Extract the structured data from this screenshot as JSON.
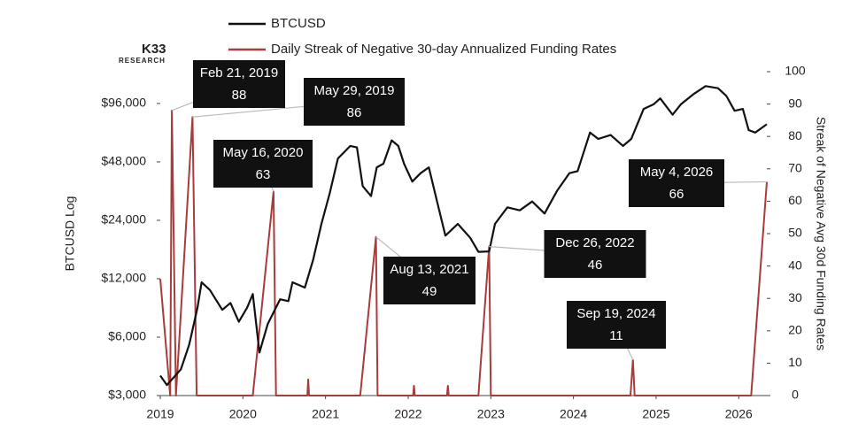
{
  "chart_data": {
    "type": "line",
    "logo": "K33",
    "logo_sub": "RESEARCH",
    "y_label": "BTCUSD Log",
    "y2_label": "Streak of Negative Avg 30d  Funding Rates",
    "xlim": [
      2019,
      2026.34
    ],
    "xticks": [
      2019,
      2020,
      2021,
      2022,
      2023,
      2024,
      2025,
      2026
    ],
    "ylim": [
      3000,
      140000
    ],
    "log_y": true,
    "yticks": [
      {
        "value": 3000,
        "label": "$3,000"
      },
      {
        "value": 6000,
        "label": "$6,000"
      },
      {
        "value": 12000,
        "label": "$12,000"
      },
      {
        "value": 24000,
        "label": "$24,000"
      },
      {
        "value": 48000,
        "label": "$48,000"
      },
      {
        "value": 96000,
        "label": "$96,000"
      }
    ],
    "y2lim": [
      0,
      100
    ],
    "y2ticks": [
      0,
      10,
      20,
      30,
      40,
      50,
      60,
      70,
      80,
      90,
      100
    ],
    "series": [
      {
        "name": "BTCUSD",
        "color": "#111111",
        "x": [
          2019.0,
          2019.08,
          2019.25,
          2019.35,
          2019.45,
          2019.5,
          2019.6,
          2019.75,
          2019.85,
          2019.95,
          2020.05,
          2020.12,
          2020.2,
          2020.3,
          2020.45,
          2020.55,
          2020.6,
          2020.75,
          2020.85,
          2020.95,
          2021.05,
          2021.15,
          2021.3,
          2021.38,
          2021.45,
          2021.55,
          2021.62,
          2021.7,
          2021.8,
          2021.88,
          2021.95,
          2022.05,
          2022.15,
          2022.25,
          2022.35,
          2022.45,
          2022.6,
          2022.75,
          2022.85,
          2022.98,
          2023.05,
          2023.2,
          2023.35,
          2023.5,
          2023.65,
          2023.8,
          2023.95,
          2024.05,
          2024.2,
          2024.3,
          2024.45,
          2024.6,
          2024.7,
          2024.85,
          2024.97,
          2025.05,
          2025.2,
          2025.3,
          2025.45,
          2025.6,
          2025.75,
          2025.85,
          2025.95,
          2026.05,
          2026.12,
          2026.2,
          2026.34
        ],
        "values": [
          3800,
          3400,
          4100,
          5500,
          8500,
          11500,
          10500,
          8300,
          9000,
          7200,
          8500,
          10000,
          5000,
          7000,
          9400,
          9200,
          11500,
          10800,
          15000,
          23000,
          33000,
          50000,
          58000,
          57000,
          36000,
          32000,
          45000,
          47000,
          62000,
          58000,
          47000,
          38000,
          42000,
          45000,
          30000,
          20000,
          23000,
          19500,
          16500,
          16600,
          23000,
          28000,
          27000,
          30000,
          26000,
          34000,
          42000,
          43000,
          68000,
          63000,
          66000,
          58000,
          63000,
          90000,
          95000,
          102000,
          84000,
          95000,
          107000,
          118000,
          115000,
          105000,
          88000,
          90000,
          70000,
          68000,
          75000
        ]
      },
      {
        "name": "Daily Streak of Negative 30-day Annualized Funding Rates",
        "color": "#a83b3b",
        "axis": "y2",
        "x": [
          2019.0,
          2019.12,
          2019.14,
          2019.19,
          2019.39,
          2019.44,
          2020.12,
          2020.37,
          2020.4,
          2020.78,
          2020.79,
          2020.8,
          2021.42,
          2021.61,
          2021.63,
          2022.06,
          2022.07,
          2022.08,
          2022.47,
          2022.48,
          2022.49,
          2022.85,
          2022.98,
          2023.0,
          2024.69,
          2024.72,
          2024.74,
          2026.15,
          2026.34
        ],
        "values": [
          36,
          0,
          88,
          0,
          86,
          0,
          0,
          63,
          0,
          0,
          5,
          0,
          0,
          49,
          0,
          0,
          3,
          0,
          0,
          3,
          0,
          0,
          46,
          0,
          0,
          11,
          0,
          0,
          66
        ]
      }
    ],
    "annotations": [
      {
        "label": "Feb 21, 2019",
        "value": 88,
        "x": 2019.14
      },
      {
        "label": "May 29, 2019",
        "value": 86,
        "x": 2019.39
      },
      {
        "label": "May 16, 2020",
        "value": 63,
        "x": 2020.37
      },
      {
        "label": "Aug 13, 2021",
        "value": 49,
        "x": 2021.61
      },
      {
        "label": "Dec 26, 2022",
        "value": 46,
        "x": 2022.98
      },
      {
        "label": "Sep 19, 2024",
        "value": 11,
        "x": 2024.72
      },
      {
        "label": "May 4, 2026",
        "value": 66,
        "x": 2026.34
      }
    ]
  }
}
